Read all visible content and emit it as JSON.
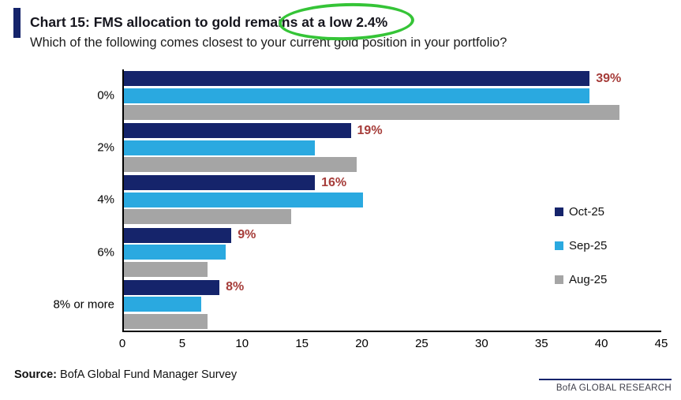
{
  "chart_data": {
    "type": "bar",
    "orientation": "horizontal",
    "title": "Chart 15: FMS allocation to gold remains at a low 2.4%",
    "subtitle": "Which of the following comes closest to your current gold position in your portfolio?",
    "categories": [
      "0%",
      "2%",
      "4%",
      "6%",
      "8% or more"
    ],
    "series": [
      {
        "name": "Oct-25",
        "color": "#15246b",
        "values": [
          39,
          19,
          16,
          9,
          8
        ]
      },
      {
        "name": "Sep-25",
        "color": "#2aa9e0",
        "values": [
          39,
          16,
          20,
          8.5,
          6.5
        ]
      },
      {
        "name": "Aug-25",
        "color": "#a5a5a5",
        "values": [
          41.5,
          19.5,
          14,
          7,
          7
        ]
      }
    ],
    "data_labels": {
      "series": "Oct-25",
      "values": [
        "39%",
        "19%",
        "16%",
        "9%",
        "8%"
      ],
      "color": "#a63d3a"
    },
    "xlabel": "",
    "ylabel": "",
    "xlim": [
      0,
      45
    ],
    "x_ticks": [
      0,
      5,
      10,
      15,
      20,
      25,
      30,
      35,
      40,
      45
    ],
    "grid": false,
    "legend_position": "right",
    "annotations": [
      {
        "type": "ellipse",
        "color": "#35c437",
        "around_text": "at a low 2.4%"
      }
    ]
  },
  "footer": {
    "source_label": "Source:",
    "source_text": "BofA Global Fund Manager Survey",
    "branding": "BofA GLOBAL RESEARCH"
  }
}
